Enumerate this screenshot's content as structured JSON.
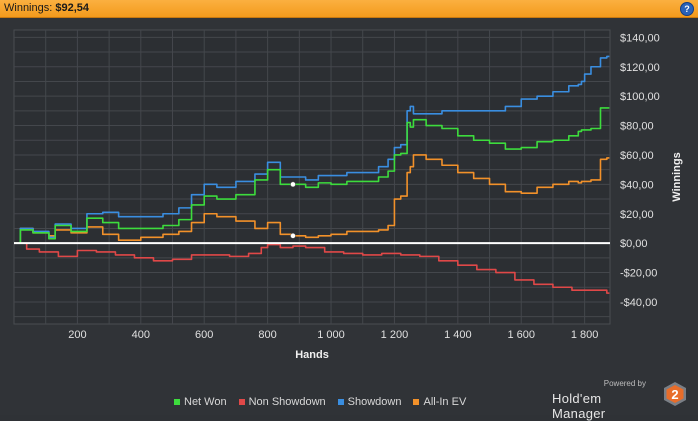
{
  "header": {
    "label": "Winnings:",
    "value": "$92,54",
    "help_icon": "question-mark-icon",
    "help_glyph": "?"
  },
  "chart_data": {
    "type": "line",
    "xlabel": "Hands",
    "ylabel": "Winnings",
    "xlim": [
      0,
      1880
    ],
    "ylim": [
      -55,
      145
    ],
    "x_ticks": [
      200,
      400,
      600,
      800,
      1000,
      1200,
      1400,
      1600,
      1800
    ],
    "x_tick_labels": [
      "200",
      "400",
      "600",
      "800",
      "1 000",
      "1 200",
      "1 400",
      "1 600",
      "1 800"
    ],
    "y_ticks": [
      140,
      120,
      100,
      80,
      60,
      40,
      20,
      0,
      -20,
      -40
    ],
    "y_tick_labels": [
      "$140,00",
      "$120,00",
      "$100,00",
      "$80,00",
      "$60,00",
      "$40,00",
      "$20,00",
      "$0,00",
      "-$20,00",
      "-$40,00"
    ],
    "grid": true,
    "legend_position": "bottom",
    "zero_line": true,
    "series": [
      {
        "name": "Net Won",
        "color": "#3ddc3d",
        "x": [
          0,
          20,
          60,
          110,
          130,
          180,
          230,
          280,
          330,
          400,
          470,
          520,
          560,
          600,
          640,
          700,
          760,
          800,
          840,
          880,
          920,
          960,
          1000,
          1050,
          1100,
          1150,
          1180,
          1200,
          1220,
          1240,
          1250,
          1260,
          1300,
          1350,
          1400,
          1450,
          1500,
          1550,
          1600,
          1650,
          1700,
          1750,
          1780,
          1790,
          1800,
          1820,
          1850,
          1870
        ],
        "y": [
          0,
          9,
          7,
          3,
          12,
          8,
          17,
          14,
          10,
          10,
          12,
          16,
          26,
          32,
          30,
          33,
          43,
          50,
          40,
          40,
          38,
          41,
          40,
          42,
          42,
          45,
          49,
          60,
          61,
          82,
          79,
          84,
          80,
          78,
          73,
          70,
          68,
          64,
          65,
          69,
          70,
          73,
          76,
          77,
          77,
          78,
          92,
          92
        ]
      },
      {
        "name": "Non Showdown",
        "color": "#e04848",
        "x": [
          0,
          40,
          80,
          140,
          200,
          260,
          320,
          380,
          440,
          500,
          560,
          620,
          680,
          740,
          780,
          800,
          840,
          880,
          920,
          980,
          1040,
          1100,
          1160,
          1220,
          1280,
          1340,
          1400,
          1460,
          1520,
          1580,
          1640,
          1700,
          1760,
          1820,
          1870
        ],
        "y": [
          0,
          -4,
          -6,
          -9,
          -5,
          -6,
          -8,
          -10,
          -12,
          -11,
          -8,
          -8,
          -9,
          -7,
          -3,
          -1,
          -3,
          -2,
          -3,
          -6,
          -7,
          -8,
          -7,
          -8,
          -9,
          -12,
          -15,
          -18,
          -20,
          -25,
          -28,
          -30,
          -32,
          -32,
          -34
        ]
      },
      {
        "name": "Showdown",
        "color": "#3a8ee0",
        "x": [
          0,
          20,
          60,
          110,
          130,
          180,
          230,
          280,
          330,
          400,
          470,
          520,
          560,
          600,
          640,
          700,
          760,
          800,
          840,
          880,
          920,
          960,
          1000,
          1050,
          1100,
          1150,
          1180,
          1200,
          1220,
          1240,
          1250,
          1260,
          1300,
          1350,
          1400,
          1450,
          1500,
          1550,
          1600,
          1650,
          1700,
          1750,
          1780,
          1790,
          1800,
          1820,
          1850,
          1870
        ],
        "y": [
          0,
          10,
          8,
          4,
          13,
          10,
          20,
          21,
          18,
          18,
          20,
          24,
          33,
          40,
          38,
          42,
          47,
          55,
          45,
          45,
          43,
          46,
          46,
          48,
          48,
          52,
          57,
          65,
          67,
          90,
          93,
          88,
          88,
          90,
          90,
          90,
          90,
          93,
          98,
          100,
          103,
          107,
          108,
          110,
          115,
          120,
          126,
          127
        ]
      },
      {
        "name": "All-In EV",
        "color": "#f2912a",
        "x": [
          0,
          20,
          60,
          110,
          130,
          180,
          230,
          280,
          330,
          400,
          470,
          520,
          560,
          600,
          640,
          700,
          760,
          800,
          840,
          880,
          920,
          960,
          1000,
          1050,
          1100,
          1150,
          1180,
          1200,
          1220,
          1240,
          1250,
          1260,
          1300,
          1350,
          1400,
          1450,
          1500,
          1550,
          1600,
          1650,
          1700,
          1750,
          1780,
          1790,
          1800,
          1820,
          1850,
          1870
        ],
        "y": [
          0,
          10,
          7,
          5,
          9,
          7,
          11,
          6,
          2,
          4,
          6,
          8,
          14,
          20,
          18,
          15,
          10,
          14,
          6,
          5,
          4,
          5,
          6,
          8,
          8,
          9,
          12,
          30,
          32,
          48,
          52,
          60,
          57,
          53,
          48,
          44,
          40,
          35,
          34,
          38,
          40,
          42,
          41,
          42,
          42,
          43,
          57,
          58
        ]
      }
    ],
    "markers": [
      {
        "x": 880,
        "y": 40
      },
      {
        "x": 880,
        "y": 5
      }
    ]
  },
  "branding": {
    "powered": "Powered by",
    "name": "Hold'em Manager",
    "badge": "2"
  }
}
